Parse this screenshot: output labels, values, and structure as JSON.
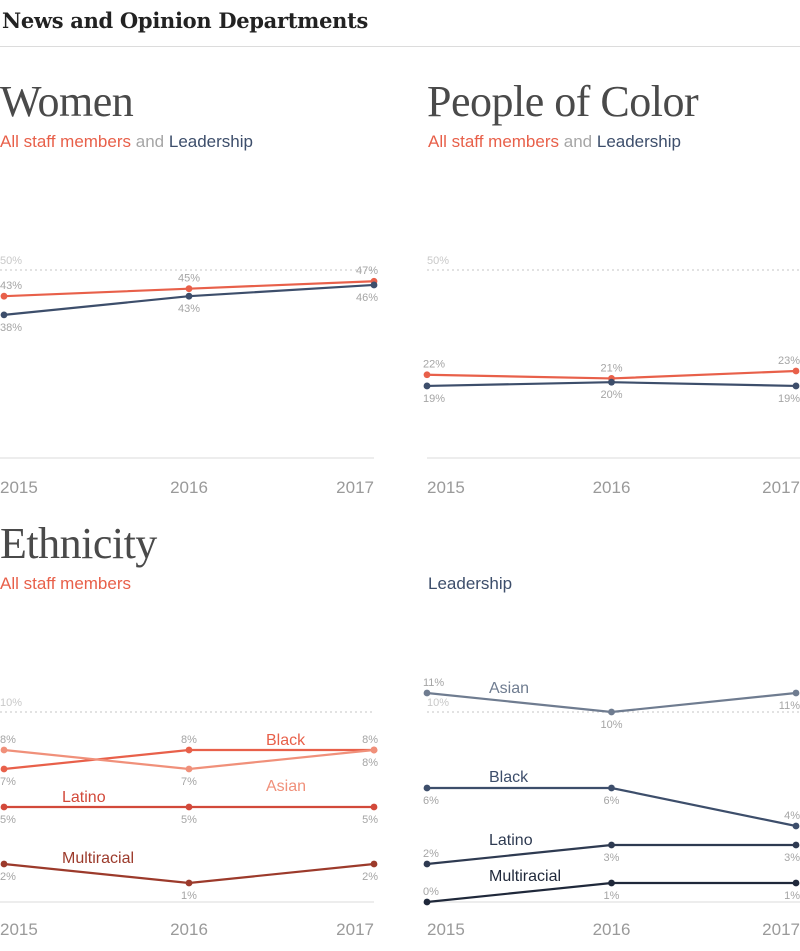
{
  "header": {
    "title": "News and Opinion Departments"
  },
  "panels": {
    "women": {
      "title": "Women",
      "sub_all": "All staff members",
      "sub_and": "and",
      "sub_lead": "Leadership"
    },
    "poc": {
      "title": "People of Color",
      "sub_all": "All staff members",
      "sub_and": "and",
      "sub_lead": "Leadership"
    },
    "ethnicity": {
      "title": "Ethnicity",
      "sub_all": "All staff members",
      "sub_lead": "Leadership"
    }
  },
  "colors": {
    "all_staff": "#e8604a",
    "leadership": "#3d4e6b",
    "black_staff": "#e8604a",
    "asian_staff": "#f0907a",
    "latino_staff": "#d2493a",
    "multiracial_staff": "#9c3a2b",
    "asian_lead": "#6f7c90",
    "black_lead": "#3d4e6b",
    "latino_lead": "#2e3a51",
    "multiracial_lead": "#1f283a"
  },
  "chart_data": [
    {
      "type": "line",
      "title": "Women",
      "x": [
        "2015",
        "2016",
        "2017"
      ],
      "ylim": [
        0,
        60
      ],
      "reference_line": {
        "value": 50,
        "label": "50%"
      },
      "series": [
        {
          "name": "All staff members",
          "values": [
            43,
            45,
            47
          ],
          "labels": [
            "43%",
            "45%",
            "47%"
          ]
        },
        {
          "name": "Leadership",
          "values": [
            38,
            43,
            46
          ],
          "labels": [
            "38%",
            "43%",
            "46%"
          ]
        }
      ]
    },
    {
      "type": "line",
      "title": "People of Color",
      "x": [
        "2015",
        "2016",
        "2017"
      ],
      "ylim": [
        0,
        60
      ],
      "reference_line": {
        "value": 50,
        "label": "50%"
      },
      "series": [
        {
          "name": "All staff members",
          "values": [
            22,
            21,
            23
          ],
          "labels": [
            "22%",
            "21%",
            "23%"
          ]
        },
        {
          "name": "Leadership",
          "values": [
            19,
            20,
            19
          ],
          "labels": [
            "19%",
            "20%",
            "19%"
          ]
        }
      ]
    },
    {
      "type": "line",
      "title": "Ethnicity",
      "subtitle": "All staff members",
      "x": [
        "2015",
        "2016",
        "2017"
      ],
      "ylim": [
        0,
        11
      ],
      "reference_line": {
        "value": 10,
        "label": "10%"
      },
      "series": [
        {
          "name": "Black",
          "values": [
            7,
            8,
            8
          ],
          "labels": [
            "7%",
            "8%",
            "8%"
          ]
        },
        {
          "name": "Asian",
          "values": [
            8,
            7,
            8
          ],
          "labels": [
            "8%",
            "7%",
            "8%"
          ]
        },
        {
          "name": "Latino",
          "values": [
            5,
            5,
            5
          ],
          "labels": [
            "5%",
            "5%",
            "5%"
          ]
        },
        {
          "name": "Multiracial",
          "values": [
            2,
            1,
            2
          ],
          "labels": [
            "2%",
            "1%",
            "2%"
          ]
        }
      ]
    },
    {
      "type": "line",
      "subtitle": "Leadership",
      "x": [
        "2015",
        "2016",
        "2017"
      ],
      "ylim": [
        0,
        11
      ],
      "reference_line": {
        "value": 10,
        "label": "10%"
      },
      "series": [
        {
          "name": "Asian",
          "values": [
            11,
            10,
            11
          ],
          "labels": [
            "11%",
            "10%",
            "11%"
          ]
        },
        {
          "name": "Black",
          "values": [
            6,
            6,
            4
          ],
          "labels": [
            "6%",
            "6%",
            "4%"
          ]
        },
        {
          "name": "Latino",
          "values": [
            2,
            3,
            3
          ],
          "labels": [
            "2%",
            "3%",
            "3%"
          ]
        },
        {
          "name": "Multiracial",
          "values": [
            0,
            1,
            1
          ],
          "labels": [
            "0%",
            "1%",
            "1%"
          ]
        }
      ]
    }
  ]
}
